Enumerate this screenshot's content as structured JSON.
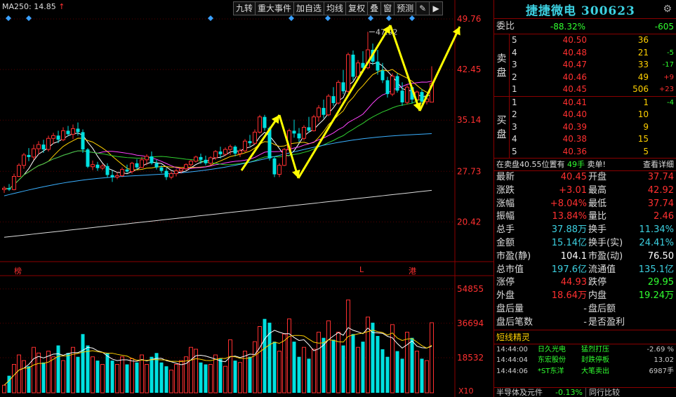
{
  "ma_label": {
    "name": "MA250:",
    "value": "14.85",
    "arrow": "↑"
  },
  "toolbar": [
    "九转",
    "重大事件",
    "加自选",
    "均线",
    "复权",
    "叠",
    "窗",
    "预测"
  ],
  "price_axis": [
    "49.76",
    "42.45",
    "35.14",
    "27.73",
    "20.42"
  ],
  "volume_axis": [
    "54855",
    "36694",
    "18532"
  ],
  "volume_unit": "X10",
  "peak_label": "47.92",
  "markers": {
    "bang": "榜",
    "l": "L",
    "gang": "港"
  },
  "colors": {
    "up": "#ff3030",
    "down": "#00e0e0",
    "yellow": "#ffff00",
    "accent_cyan": "#3cd0e0",
    "green": "#30ff30"
  },
  "chart_data": {
    "type": "candlestick",
    "ylim": [
      16.0,
      52.5
    ],
    "candles": [
      [
        25.1,
        25.6,
        24.6,
        25.3
      ],
      [
        25.3,
        25.9,
        24.9,
        25.1
      ],
      [
        25.1,
        27.4,
        25.0,
        27.0
      ],
      [
        27.0,
        28.9,
        26.9,
        28.6
      ],
      [
        28.6,
        30.4,
        28.1,
        30.1
      ],
      [
        30.1,
        31.1,
        29.2,
        29.8
      ],
      [
        29.8,
        31.6,
        29.4,
        31.0
      ],
      [
        31.0,
        32.1,
        30.2,
        31.6
      ],
      [
        31.6,
        32.3,
        30.4,
        30.9
      ],
      [
        30.9,
        32.9,
        30.6,
        32.5
      ],
      [
        32.5,
        33.3,
        31.7,
        32.9
      ],
      [
        32.9,
        33.6,
        31.8,
        32.3
      ],
      [
        32.3,
        34.1,
        32.1,
        33.6
      ],
      [
        33.6,
        34.3,
        32.8,
        33.1
      ],
      [
        33.1,
        34.5,
        32.4,
        33.9
      ],
      [
        33.9,
        34.8,
        32.9,
        33.4
      ],
      [
        33.4,
        33.8,
        30.4,
        30.9
      ],
      [
        30.9,
        31.1,
        28.2,
        28.4
      ],
      [
        28.4,
        29.3,
        27.9,
        28.7
      ],
      [
        28.7,
        29.1,
        27.8,
        28.2
      ],
      [
        28.2,
        28.8,
        27.9,
        28.5
      ],
      [
        28.5,
        28.9,
        26.8,
        27.2
      ],
      [
        27.2,
        27.9,
        26.2,
        26.9
      ],
      [
        26.9,
        27.6,
        26.6,
        27.1
      ],
      [
        27.1,
        28.3,
        26.9,
        28.0
      ],
      [
        28.0,
        28.7,
        27.5,
        27.7
      ],
      [
        27.7,
        29.1,
        27.4,
        28.9
      ],
      [
        28.9,
        29.5,
        28.0,
        28.3
      ],
      [
        28.3,
        29.8,
        28.2,
        29.4
      ],
      [
        29.4,
        30.2,
        28.6,
        29.9
      ],
      [
        29.9,
        30.6,
        28.7,
        28.9
      ],
      [
        28.9,
        29.4,
        28.0,
        28.3
      ],
      [
        28.3,
        28.6,
        27.5,
        27.8
      ],
      [
        27.8,
        28.2,
        26.5,
        26.9
      ],
      [
        26.9,
        27.7,
        26.6,
        27.4
      ],
      [
        27.4,
        28.1,
        27.0,
        27.8
      ],
      [
        27.8,
        28.3,
        27.4,
        28.1
      ],
      [
        28.1,
        28.9,
        27.9,
        28.7
      ],
      [
        28.7,
        29.4,
        28.4,
        29.2
      ],
      [
        29.2,
        30.0,
        29.0,
        29.8
      ],
      [
        29.8,
        30.3,
        28.8,
        29.4
      ],
      [
        29.4,
        30.0,
        28.6,
        28.9
      ],
      [
        28.9,
        29.9,
        28.6,
        29.7
      ],
      [
        29.7,
        30.8,
        29.4,
        30.6
      ],
      [
        30.6,
        31.3,
        29.6,
        30.2
      ],
      [
        30.2,
        31.2,
        30.0,
        30.9
      ],
      [
        30.9,
        31.6,
        30.1,
        31.3
      ],
      [
        31.3,
        31.5,
        29.9,
        30.3
      ],
      [
        30.3,
        31.0,
        29.8,
        30.7
      ],
      [
        30.7,
        32.4,
        30.5,
        32.1
      ],
      [
        32.1,
        33.0,
        31.4,
        31.8
      ],
      [
        31.8,
        33.8,
        31.6,
        33.4
      ],
      [
        33.4,
        35.9,
        33.2,
        35.6
      ],
      [
        35.6,
        35.9,
        33.6,
        34.0
      ],
      [
        34.0,
        34.2,
        29.3,
        29.6
      ],
      [
        29.6,
        29.9,
        26.9,
        27.3
      ],
      [
        27.3,
        28.9,
        26.9,
        28.6
      ],
      [
        28.6,
        31.1,
        28.5,
        30.9
      ],
      [
        30.9,
        33.9,
        30.6,
        33.6
      ],
      [
        33.6,
        35.2,
        32.6,
        33.2
      ],
      [
        33.2,
        34.0,
        31.9,
        32.5
      ],
      [
        32.5,
        34.4,
        32.2,
        34.1
      ],
      [
        34.1,
        35.6,
        33.3,
        33.6
      ],
      [
        33.6,
        35.9,
        33.5,
        35.6
      ],
      [
        35.6,
        37.3,
        34.9,
        36.9
      ],
      [
        36.9,
        38.1,
        35.4,
        35.9
      ],
      [
        35.9,
        38.9,
        35.7,
        38.6
      ],
      [
        38.6,
        39.9,
        37.2,
        37.6
      ],
      [
        37.6,
        40.9,
        37.4,
        40.6
      ],
      [
        40.6,
        42.4,
        38.9,
        39.3
      ],
      [
        39.3,
        44.9,
        39.1,
        44.6
      ],
      [
        44.6,
        45.2,
        40.9,
        41.4
      ],
      [
        41.4,
        43.8,
        40.9,
        43.4
      ],
      [
        43.4,
        45.1,
        42.0,
        42.7
      ],
      [
        42.7,
        47.9,
        42.5,
        45.3
      ],
      [
        45.3,
        46.2,
        43.1,
        43.6
      ],
      [
        43.6,
        45.3,
        41.7,
        42.3
      ],
      [
        42.3,
        43.4,
        40.5,
        40.9
      ],
      [
        40.9,
        41.4,
        38.4,
        38.9
      ],
      [
        38.9,
        41.9,
        38.6,
        41.5
      ],
      [
        41.5,
        41.9,
        39.1,
        39.4
      ],
      [
        39.4,
        40.6,
        37.2,
        37.7
      ],
      [
        37.7,
        40.2,
        37.4,
        39.9
      ],
      [
        39.9,
        40.1,
        37.6,
        38.1
      ],
      [
        38.1,
        39.4,
        37.3,
        39.2
      ],
      [
        39.2,
        39.6,
        37.5,
        37.8
      ],
      [
        37.8,
        38.6,
        37.4,
        38.2
      ],
      [
        37.74,
        42.92,
        37.74,
        40.45
      ]
    ],
    "volumes": [
      4000,
      9000,
      15000,
      20000,
      17000,
      14000,
      24000,
      21000,
      16000,
      22000,
      19000,
      25000,
      17000,
      21000,
      24000,
      19000,
      31000,
      25000,
      19000,
      17000,
      15000,
      21000,
      17000,
      15000,
      19000,
      15000,
      18000,
      16000,
      20000,
      15000,
      19000,
      21000,
      16000,
      14000,
      12000,
      15000,
      17000,
      19000,
      24000,
      23000,
      16000,
      15000,
      15000,
      20000,
      18000,
      14000,
      28000,
      17000,
      16000,
      22000,
      19000,
      27000,
      35000,
      39000,
      37000,
      27000,
      22000,
      31000,
      39000,
      27000,
      19000,
      24000,
      18000,
      23000,
      32000,
      29000,
      38000,
      28000,
      32000,
      25000,
      49000,
      31000,
      24000,
      27000,
      40000,
      37000,
      30000,
      23000,
      19000,
      36000,
      22000,
      18000,
      32000,
      29000,
      22000,
      18000,
      17000,
      37000
    ]
  },
  "panel": {
    "title": "捷捷微电 300623",
    "close": "⚙",
    "weibi": {
      "label": "委比",
      "pct": "-88.32%",
      "diff": "-605"
    },
    "sell_label": [
      "卖",
      "盘"
    ],
    "buy_label": [
      "买",
      "盘"
    ],
    "asks": [
      {
        "lv": "5",
        "price": "40.50",
        "vol": "36",
        "chg": ""
      },
      {
        "lv": "4",
        "price": "40.48",
        "vol": "21",
        "chg": "-5"
      },
      {
        "lv": "3",
        "price": "40.47",
        "vol": "33",
        "chg": "-17"
      },
      {
        "lv": "2",
        "price": "40.46",
        "vol": "49",
        "chg": "+9"
      },
      {
        "lv": "1",
        "price": "40.45",
        "vol": "506",
        "chg": "+23"
      }
    ],
    "bids": [
      {
        "lv": "1",
        "price": "40.41",
        "vol": "1",
        "chg": "-4"
      },
      {
        "lv": "2",
        "price": "40.40",
        "vol": "10",
        "chg": ""
      },
      {
        "lv": "3",
        "price": "40.39",
        "vol": "9",
        "chg": ""
      },
      {
        "lv": "4",
        "price": "40.38",
        "vol": "15",
        "chg": ""
      },
      {
        "lv": "5",
        "price": "40.36",
        "vol": "5",
        "chg": ""
      }
    ],
    "info": {
      "a": "在卖盘40.55位置有",
      "b": "49手",
      "c": "卖单!",
      "d": "查看详细"
    },
    "quote": [
      {
        "k1": "最新",
        "v1": "40.45",
        "c1": "red",
        "k2": "开盘",
        "v2": "37.74",
        "c2": "red"
      },
      {
        "k1": "涨跌",
        "v1": "+3.01",
        "c1": "red",
        "k2": "最高",
        "v2": "42.92",
        "c2": "red"
      },
      {
        "k1": "涨幅",
        "v1": "+8.04%",
        "c1": "red",
        "k2": "最低",
        "v2": "37.74",
        "c2": "red"
      },
      {
        "k1": "振幅",
        "v1": "13.84%",
        "c1": "red",
        "k2": "量比",
        "v2": "2.46",
        "c2": "red"
      },
      {
        "k1": "总手",
        "v1": "37.88万",
        "c1": "cyan",
        "k2": "换手",
        "v2": "11.34%",
        "c2": "cyan"
      },
      {
        "k1": "金额",
        "v1": "15.14亿",
        "c1": "cyan",
        "k2": "换手(实)",
        "v2": "24.41%",
        "c2": "cyan"
      },
      {
        "k1": "市盈(静)",
        "v1": "104.1",
        "c1": "white",
        "k2": "市盈(动)",
        "v2": "76.50",
        "c2": "white"
      },
      {
        "k1": "总市值",
        "v1": "197.6亿",
        "c1": "cyan",
        "k2": "流通值",
        "v2": "135.1亿",
        "c2": "cyan"
      },
      {
        "k1": "涨停",
        "v1": "44.93",
        "c1": "red",
        "k2": "跌停",
        "v2": "29.95",
        "c2": "grn"
      },
      {
        "k1": "外盘",
        "v1": "18.64万",
        "c1": "red",
        "k2": "内盘",
        "v2": "19.24万",
        "c2": "grn"
      },
      {
        "k1": "盘后量",
        "v1": "-",
        "c1": "gray",
        "k2": "盘后额",
        "v2": "",
        "c2": "gray"
      },
      {
        "k1": "盘后笔数",
        "v1": "-",
        "c1": "gray",
        "k2": "是否盈利",
        "v2": "",
        "c2": "gray"
      }
    ],
    "sprite_title": "短线精灵",
    "alerts": [
      {
        "t": "14:44:00",
        "s": "日久光电",
        "e": "猛烈打压",
        "x": "-2.69 %"
      },
      {
        "t": "14:44:04",
        "s": "东宏股份",
        "e": "封跌停板",
        "x": "13.02"
      },
      {
        "t": "14:44:06",
        "s": "*ST东洋",
        "e": "大笔卖出",
        "x": "6987手"
      }
    ],
    "bottom": {
      "sector": "半导体及元件",
      "sector_pct": "-0.13%",
      "compare": "同行比较"
    }
  }
}
